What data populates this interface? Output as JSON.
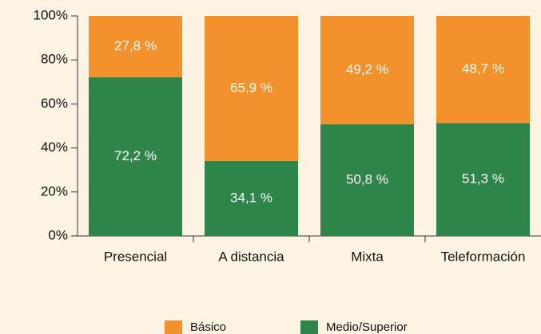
{
  "chart_data": {
    "type": "stacked_bar",
    "categories": [
      "Presencial",
      "A distancia",
      "Mixta",
      "Teleformación"
    ],
    "series": [
      {
        "name": "Básico",
        "color": "#f3922b",
        "values": [
          27.8,
          65.9,
          49.2,
          48.7
        ],
        "value_labels": [
          "27,8 %",
          "65,9 %",
          "49,2 %",
          "48,7 %"
        ]
      },
      {
        "name": "Medio/Superior",
        "color": "#2e854a",
        "values": [
          72.2,
          34.1,
          50.8,
          51.3
        ],
        "value_labels": [
          "72,2 %",
          "34,1 %",
          "50,8 %",
          "51,3 %"
        ]
      }
    ],
    "ylim": [
      0,
      100
    ],
    "yticks": [
      {
        "value": 0,
        "label": "0%"
      },
      {
        "value": 20,
        "label": "20%"
      },
      {
        "value": 40,
        "label": "40%"
      },
      {
        "value": 60,
        "label": "60%"
      },
      {
        "value": 80,
        "label": "80%"
      },
      {
        "value": 100,
        "label": "100%"
      }
    ],
    "grid": false,
    "legend": "bottom"
  }
}
